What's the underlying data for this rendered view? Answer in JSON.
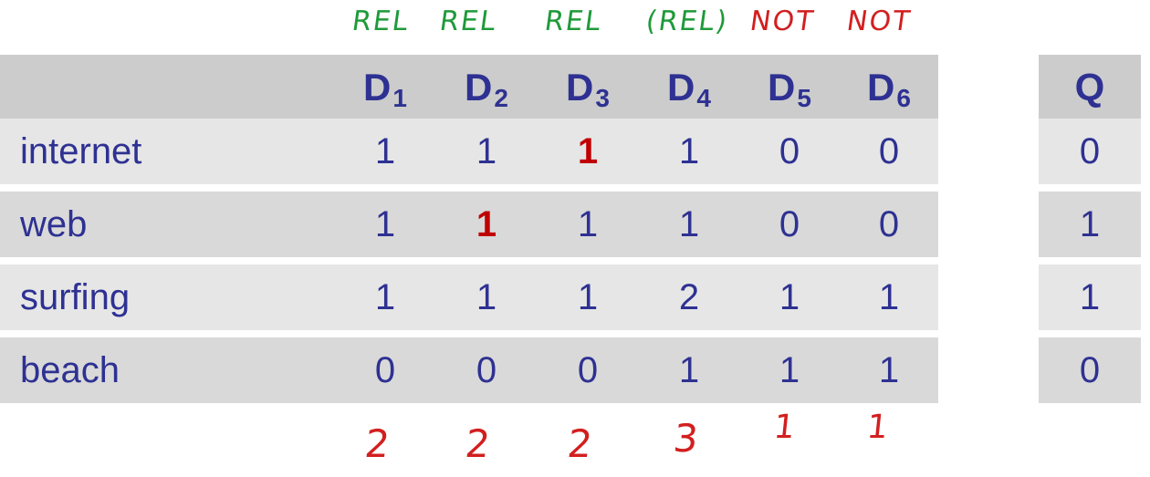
{
  "annotations_top": [
    "REL",
    "REL",
    "REL",
    "(REL)",
    "NOT",
    "NOT"
  ],
  "annotations_bottom": [
    "2",
    "2",
    "2",
    "3",
    "1",
    "1"
  ],
  "table": {
    "headers": [
      {
        "base": "D",
        "sub": "1"
      },
      {
        "base": "D",
        "sub": "2"
      },
      {
        "base": "D",
        "sub": "3"
      },
      {
        "base": "D",
        "sub": "4"
      },
      {
        "base": "D",
        "sub": "5"
      },
      {
        "base": "D",
        "sub": "6"
      }
    ],
    "query_header": "Q",
    "rows": [
      {
        "term": "internet",
        "values": [
          "1",
          "1",
          "1",
          "1",
          "0",
          "0"
        ],
        "q": "0"
      },
      {
        "term": "web",
        "values": [
          "1",
          "1",
          "1",
          "1",
          "0",
          "0"
        ],
        "q": "1"
      },
      {
        "term": "surfing",
        "values": [
          "1",
          "1",
          "1",
          "2",
          "1",
          "1"
        ],
        "q": "1"
      },
      {
        "term": "beach",
        "values": [
          "0",
          "0",
          "0",
          "1",
          "1",
          "1"
        ],
        "q": "0"
      }
    ],
    "highlighted_cells": [
      {
        "row": 0,
        "col": 2
      },
      {
        "row": 1,
        "col": 1
      }
    ]
  },
  "colors": {
    "text": "#2e3192",
    "highlight": "#c00000",
    "rel_annotation": "#1f9a3a",
    "not_annotation": "#d21f1f",
    "header_bg": "#cccccc",
    "row_bg_light": "#e6e6e6",
    "row_bg_mid": "#d9d9d9"
  }
}
